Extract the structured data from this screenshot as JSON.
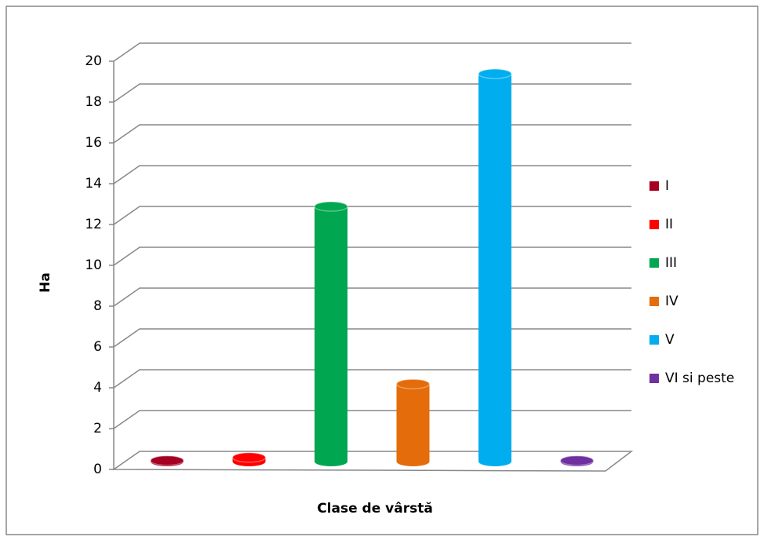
{
  "chart_data": {
    "type": "bar3d",
    "x_label": "Clase de vârstă",
    "y_label": "Ha",
    "categories": [
      null
    ],
    "series": [
      {
        "name": "I",
        "color": "#a50021",
        "values": [
          0.05
        ]
      },
      {
        "name": "II",
        "color": "#ff0000",
        "values": [
          0.2
        ]
      },
      {
        "name": "III",
        "color": "#00a650",
        "values": [
          12.5
        ]
      },
      {
        "name": "IV",
        "color": "#e46c0a",
        "values": [
          3.8
        ]
      },
      {
        "name": "V",
        "color": "#00aeef",
        "values": [
          19
        ]
      },
      {
        "name": "VI si peste",
        "color": "#7030a0",
        "values": [
          0.05
        ]
      }
    ],
    "ylim": [
      0,
      20
    ],
    "yticks": [
      0,
      2,
      4,
      6,
      8,
      10,
      12,
      14,
      16,
      18,
      20
    ],
    "grid": true,
    "legend": "right"
  }
}
